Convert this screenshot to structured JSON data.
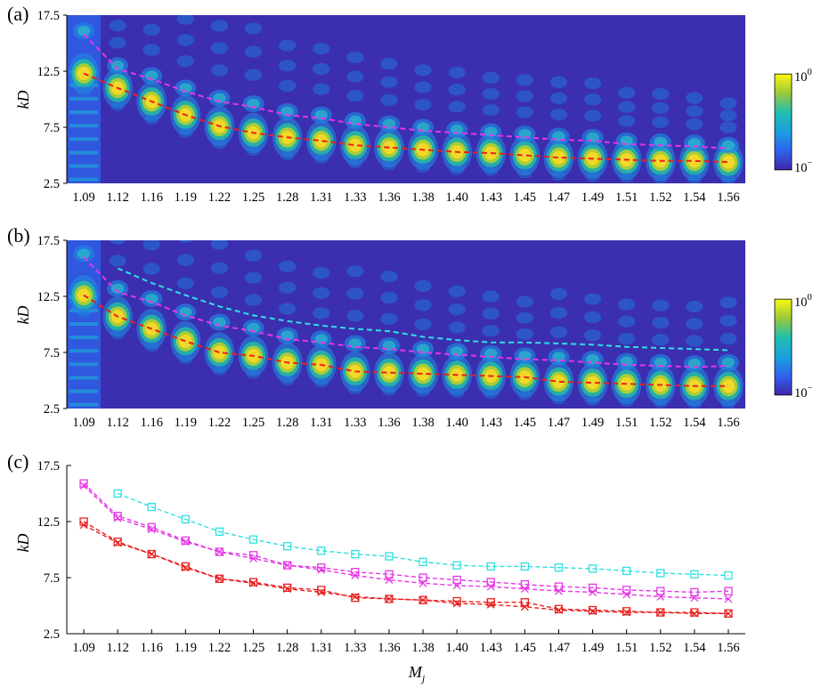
{
  "chart_data": [
    {
      "panel": "(a)",
      "type": "heatmap",
      "ylabel": "kD",
      "ylim": [
        2.5,
        17.5
      ],
      "yticks": [
        "2.5",
        "7.5",
        "12.5",
        "17.5"
      ],
      "categories": [
        "1.09",
        "1.12",
        "1.16",
        "1.19",
        "1.22",
        "1.25",
        "1.28",
        "1.31",
        "1.33",
        "1.36",
        "1.38",
        "1.40",
        "1.43",
        "1.45",
        "1.47",
        "1.49",
        "1.51",
        "1.52",
        "1.54",
        "1.56"
      ],
      "colorbar": {
        "ticks": [
          "10^0",
          "10^-1"
        ],
        "scale": "log",
        "range": [
          0.1,
          1
        ]
      },
      "series": [
        {
          "color": "#e8201e",
          "values": [
            12.3,
            11.0,
            9.8,
            8.6,
            7.6,
            7.0,
            6.6,
            6.3,
            5.9,
            5.7,
            5.5,
            5.3,
            5.2,
            5.0,
            4.8,
            4.7,
            4.6,
            4.5,
            4.5,
            4.4
          ]
        },
        {
          "color": "#e637e6",
          "values": [
            15.8,
            12.7,
            11.8,
            10.7,
            9.8,
            9.3,
            8.6,
            8.3,
            7.8,
            7.5,
            7.2,
            7.0,
            6.8,
            6.6,
            6.4,
            6.3,
            6.0,
            5.9,
            5.8,
            5.6
          ]
        }
      ]
    },
    {
      "panel": "(b)",
      "type": "heatmap",
      "ylabel": "kD",
      "ylim": [
        2.5,
        17.5
      ],
      "yticks": [
        "2.5",
        "7.5",
        "12.5",
        "17.5"
      ],
      "categories": [
        "1.09",
        "1.12",
        "1.16",
        "1.19",
        "1.22",
        "1.25",
        "1.28",
        "1.31",
        "1.33",
        "1.36",
        "1.38",
        "1.40",
        "1.43",
        "1.45",
        "1.47",
        "1.49",
        "1.51",
        "1.52",
        "1.54",
        "1.56"
      ],
      "colorbar": {
        "ticks": [
          "10^0",
          "10^-1"
        ],
        "scale": "log",
        "range": [
          0.1,
          1
        ]
      },
      "series": [
        {
          "color": "#e8201e",
          "values": [
            12.6,
            10.7,
            9.6,
            8.5,
            7.5,
            7.2,
            6.6,
            6.4,
            5.8,
            5.7,
            5.6,
            5.5,
            5.4,
            5.3,
            4.9,
            4.8,
            4.7,
            4.6,
            4.5,
            4.5
          ]
        },
        {
          "color": "#e637e6",
          "values": [
            16.0,
            12.9,
            12.0,
            10.8,
            9.9,
            9.4,
            8.7,
            8.4,
            8.0,
            7.8,
            7.5,
            7.3,
            7.1,
            6.9,
            6.8,
            6.6,
            6.4,
            6.3,
            6.2,
            6.3
          ]
        },
        {
          "color": "#2ee0e0",
          "values": [
            null,
            15.0,
            13.7,
            12.6,
            11.6,
            10.8,
            10.3,
            9.9,
            9.6,
            9.4,
            8.9,
            8.6,
            8.4,
            8.4,
            8.3,
            8.2,
            8.0,
            7.9,
            7.8,
            7.7
          ]
        }
      ]
    },
    {
      "panel": "(c)",
      "type": "line",
      "xlabel": "M_j",
      "ylabel": "kD",
      "ylim": [
        2.5,
        17.5
      ],
      "yticks": [
        "2.5",
        "7.5",
        "12.5",
        "17.5"
      ],
      "categories": [
        "1.09",
        "1.12",
        "1.16",
        "1.19",
        "1.22",
        "1.25",
        "1.28",
        "1.31",
        "1.33",
        "1.36",
        "1.38",
        "1.40",
        "1.43",
        "1.45",
        "1.47",
        "1.49",
        "1.51",
        "1.52",
        "1.54",
        "1.56"
      ],
      "series": [
        {
          "color": "#e8201e",
          "marker": "x",
          "values": [
            12.2,
            10.6,
            9.6,
            8.4,
            7.4,
            7.0,
            6.5,
            6.2,
            5.8,
            5.6,
            5.5,
            5.2,
            5.1,
            4.9,
            4.6,
            4.5,
            4.4,
            4.4,
            4.3,
            4.3
          ]
        },
        {
          "color": "#e8201e",
          "marker": "square",
          "values": [
            12.5,
            10.7,
            9.6,
            8.5,
            7.4,
            7.1,
            6.6,
            6.4,
            5.7,
            5.6,
            5.5,
            5.4,
            5.3,
            5.3,
            4.7,
            4.6,
            4.5,
            4.4,
            4.4,
            4.3
          ]
        },
        {
          "color": "#e637e6",
          "marker": "x",
          "values": [
            15.7,
            12.8,
            11.8,
            10.7,
            9.8,
            9.2,
            8.6,
            8.2,
            7.7,
            7.3,
            7.0,
            6.8,
            6.7,
            6.5,
            6.3,
            6.2,
            6.0,
            5.8,
            5.7,
            5.6
          ]
        },
        {
          "color": "#e637e6",
          "marker": "square",
          "values": [
            15.9,
            13.0,
            12.0,
            10.8,
            9.8,
            9.5,
            8.6,
            8.4,
            8.0,
            7.8,
            7.5,
            7.3,
            7.1,
            6.9,
            6.7,
            6.6,
            6.4,
            6.3,
            6.2,
            6.3
          ]
        },
        {
          "color": "#2ee0e0",
          "marker": "square",
          "values": [
            null,
            15.0,
            13.8,
            12.7,
            11.6,
            10.9,
            10.3,
            9.9,
            9.6,
            9.4,
            8.9,
            8.6,
            8.5,
            8.5,
            8.4,
            8.3,
            8.1,
            7.9,
            7.8,
            7.7
          ]
        }
      ]
    }
  ]
}
